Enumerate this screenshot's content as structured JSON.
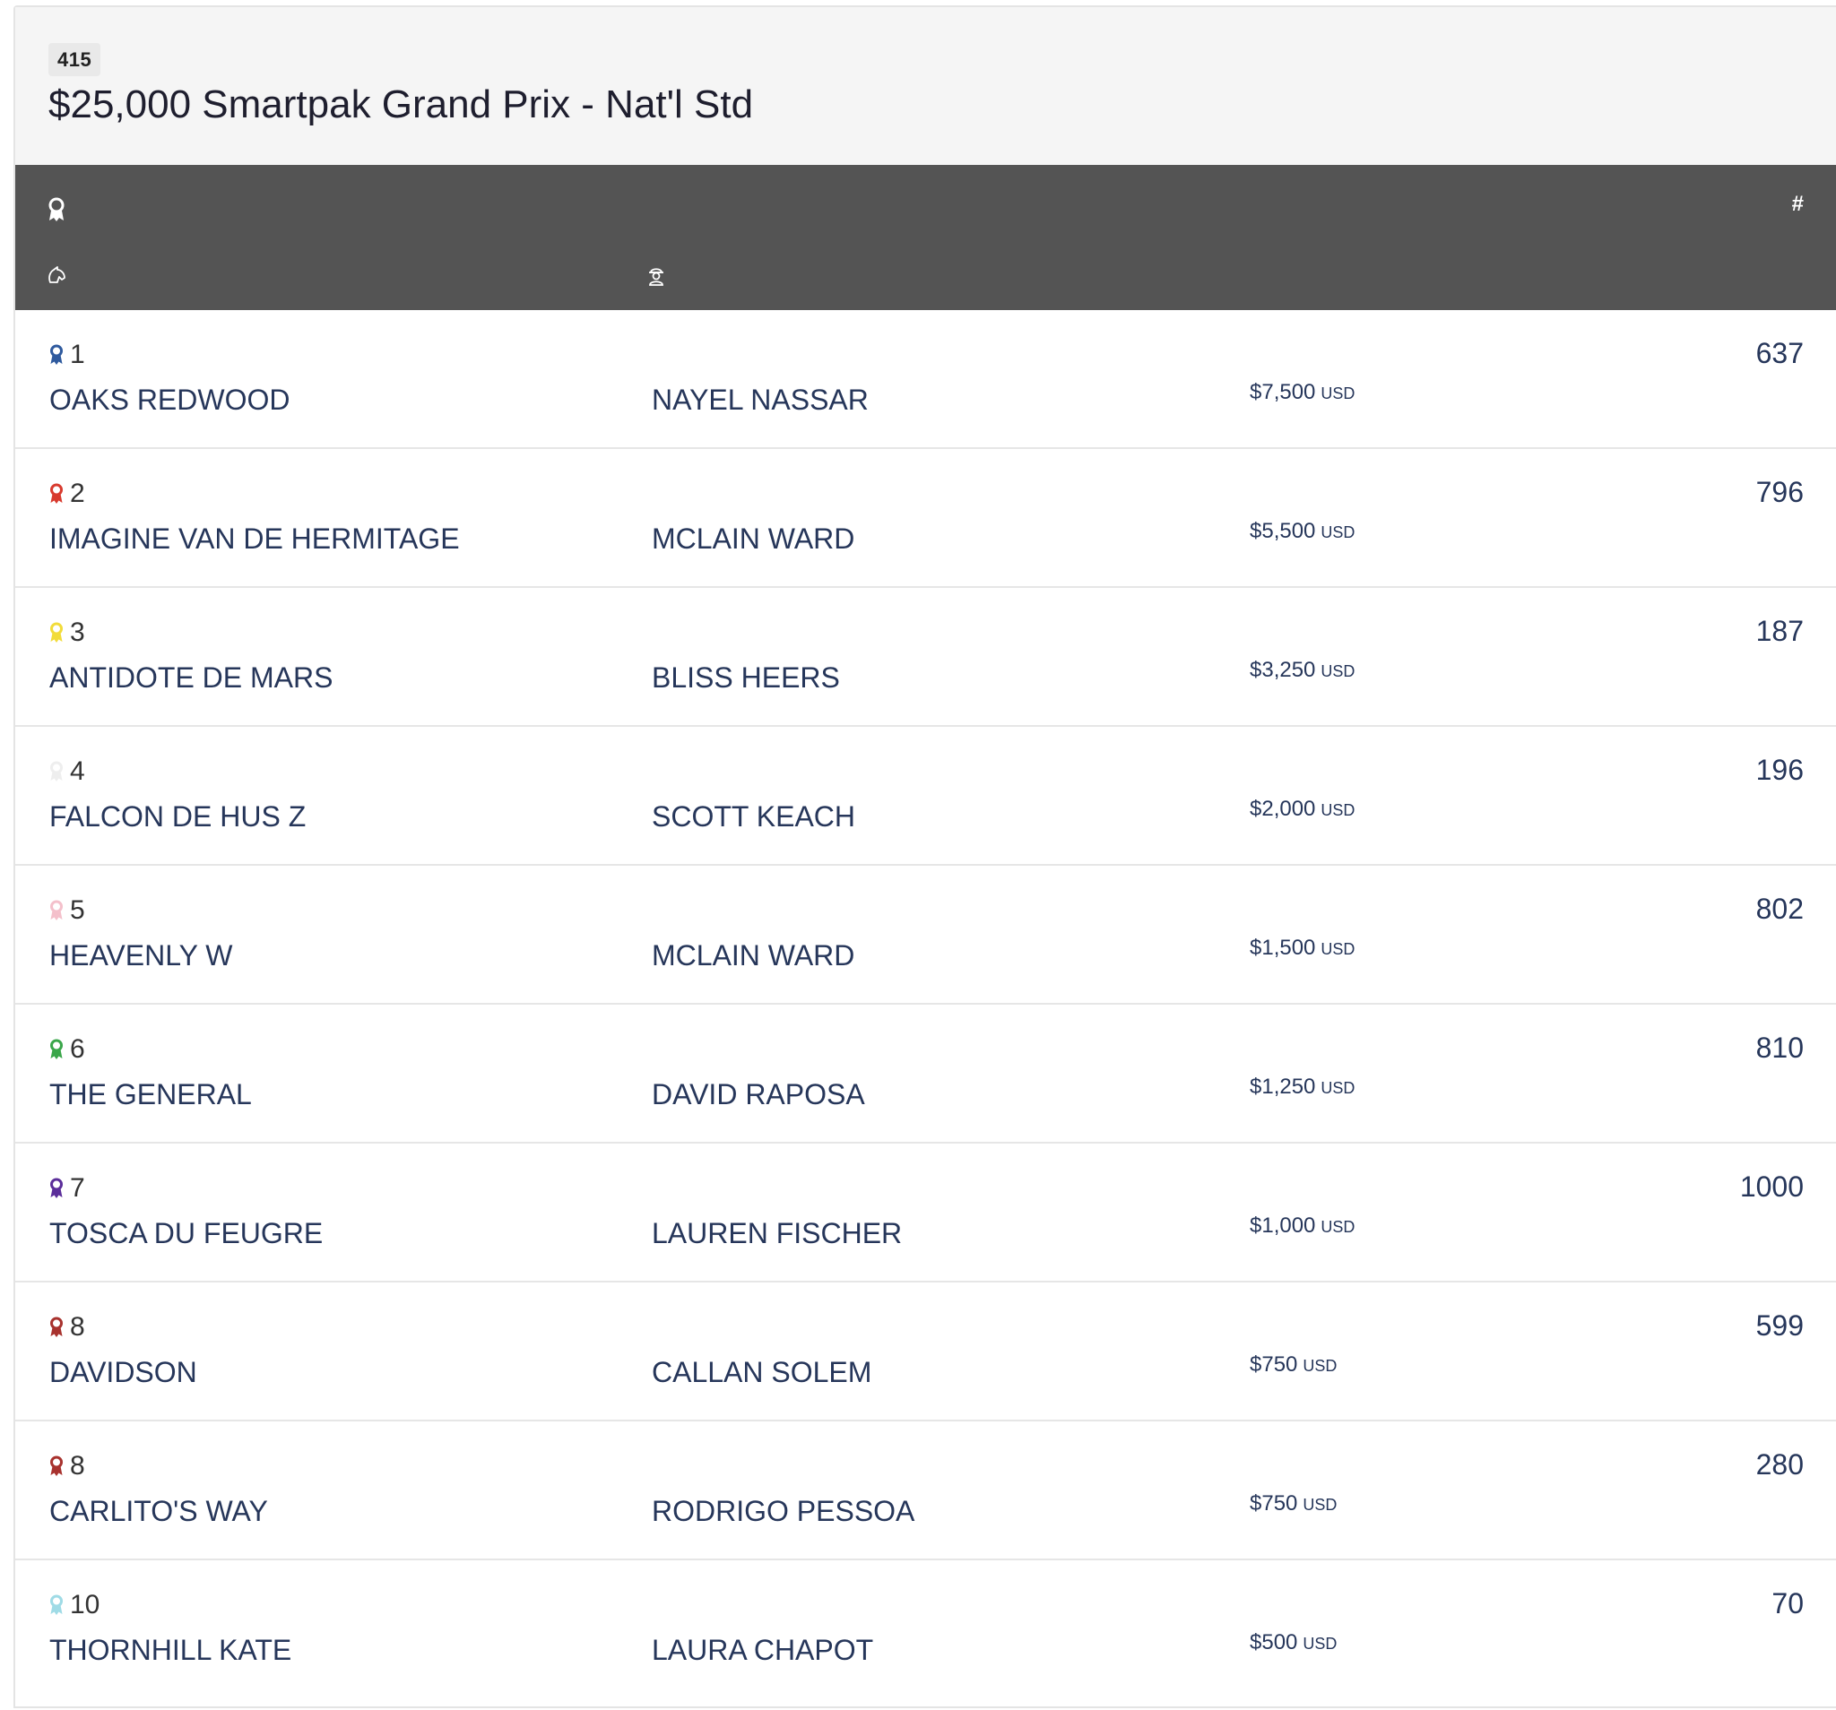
{
  "class": {
    "number": "415",
    "title": "$25,000 Smartpak Grand Prix - Nat'l Std"
  },
  "columns": {
    "place_icon": "ribbon-icon",
    "horse_icon": "horse-head-icon",
    "rider_icon": "rider-icon",
    "entry_label": "#"
  },
  "results": [
    {
      "place": "1",
      "ribbon_color": "#2f5a9e",
      "horse": "OAKS REDWOOD",
      "rider": "NAYEL NASSAR",
      "prize": "$7,500",
      "currency": "USD",
      "entry": "637"
    },
    {
      "place": "2",
      "ribbon_color": "#d83a2e",
      "horse": "IMAGINE VAN DE HERMITAGE",
      "rider": "MCLAIN WARD",
      "prize": "$5,500",
      "currency": "USD",
      "entry": "796"
    },
    {
      "place": "3",
      "ribbon_color": "#f2dc3a",
      "horse": "ANTIDOTE DE MARS",
      "rider": "BLISS HEERS",
      "prize": "$3,250",
      "currency": "USD",
      "entry": "187"
    },
    {
      "place": "4",
      "ribbon_color": "#eeeeee",
      "horse": "FALCON DE HUS Z",
      "rider": "SCOTT KEACH",
      "prize": "$2,000",
      "currency": "USD",
      "entry": "196"
    },
    {
      "place": "5",
      "ribbon_color": "#f4c0cb",
      "horse": "HEAVENLY W",
      "rider": "MCLAIN WARD",
      "prize": "$1,500",
      "currency": "USD",
      "entry": "802"
    },
    {
      "place": "6",
      "ribbon_color": "#3aa64a",
      "horse": "THE GENERAL",
      "rider": "DAVID RAPOSA",
      "prize": "$1,250",
      "currency": "USD",
      "entry": "810"
    },
    {
      "place": "7",
      "ribbon_color": "#5b2e9a",
      "horse": "TOSCA DU FEUGRE",
      "rider": "LAUREN FISCHER",
      "prize": "$1,000",
      "currency": "USD",
      "entry": "1000"
    },
    {
      "place": "8",
      "ribbon_color": "#a8322e",
      "horse": "DAVIDSON",
      "rider": "CALLAN SOLEM",
      "prize": "$750",
      "currency": "USD",
      "entry": "599"
    },
    {
      "place": "8",
      "ribbon_color": "#a8322e",
      "horse": "CARLITO'S WAY",
      "rider": "RODRIGO PESSOA",
      "prize": "$750",
      "currency": "USD",
      "entry": "280"
    },
    {
      "place": "10",
      "ribbon_color": "#9fdbe6",
      "horse": "THORNHILL KATE",
      "rider": "LAURA CHAPOT",
      "prize": "$500",
      "currency": "USD",
      "entry": "70"
    }
  ]
}
